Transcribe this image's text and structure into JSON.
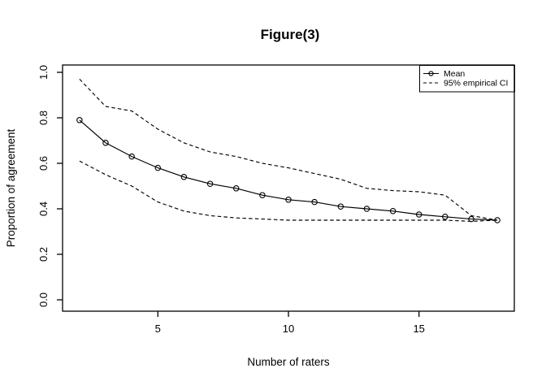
{
  "figure": {
    "title": "Figure(3)"
  },
  "axes": {
    "x": {
      "label": "Number of raters",
      "tick_labels": [
        "5",
        "10",
        "15"
      ],
      "tick_values": [
        5,
        10,
        15
      ]
    },
    "y": {
      "label": "Proportion of agreement",
      "tick_labels": [
        "0.0",
        "0.2",
        "0.4",
        "0.6",
        "0.8",
        "1.0"
      ],
      "tick_values": [
        0,
        0.2,
        0.4,
        0.6,
        0.8,
        1.0
      ]
    }
  },
  "legend": {
    "items": [
      {
        "label": "Mean",
        "line_style": "solid",
        "marker": "circle"
      },
      {
        "label": "95% empirical CI",
        "line_style": "dashed",
        "marker": "none"
      }
    ]
  },
  "chart_data": {
    "type": "line",
    "title": "Figure(3)",
    "xlabel": "Number of raters",
    "ylabel": "Proportion of agreement",
    "x": [
      2,
      3,
      4,
      5,
      6,
      7,
      8,
      9,
      10,
      11,
      12,
      13,
      14,
      15,
      16,
      17,
      18
    ],
    "series": [
      {
        "name": "Mean",
        "style": "solid",
        "marker": "circle",
        "values": [
          0.79,
          0.69,
          0.63,
          0.58,
          0.54,
          0.51,
          0.49,
          0.46,
          0.44,
          0.43,
          0.41,
          0.4,
          0.39,
          0.375,
          0.365,
          0.355,
          0.35
        ]
      },
      {
        "name": "95% empirical CI (upper)",
        "style": "dashed",
        "marker": "none",
        "values": [
          0.97,
          0.85,
          0.83,
          0.75,
          0.69,
          0.65,
          0.63,
          0.6,
          0.58,
          0.555,
          0.53,
          0.49,
          0.48,
          0.475,
          0.46,
          0.37,
          0.35
        ]
      },
      {
        "name": "95% empirical CI (lower)",
        "style": "dashed",
        "marker": "none",
        "values": [
          0.61,
          0.55,
          0.5,
          0.43,
          0.39,
          0.37,
          0.36,
          0.355,
          0.35,
          0.35,
          0.35,
          0.35,
          0.35,
          0.35,
          0.35,
          0.345,
          0.35
        ]
      }
    ],
    "xlim": [
      2,
      18
    ],
    "ylim": [
      0,
      1
    ],
    "x_ticks": [
      5,
      10,
      15
    ],
    "y_ticks": [
      0,
      0.2,
      0.4,
      0.6,
      0.8,
      1.0
    ],
    "grid": false,
    "legend_position": "top-right",
    "colors": {
      "foreground": "#000000",
      "background": "#ffffff"
    }
  }
}
